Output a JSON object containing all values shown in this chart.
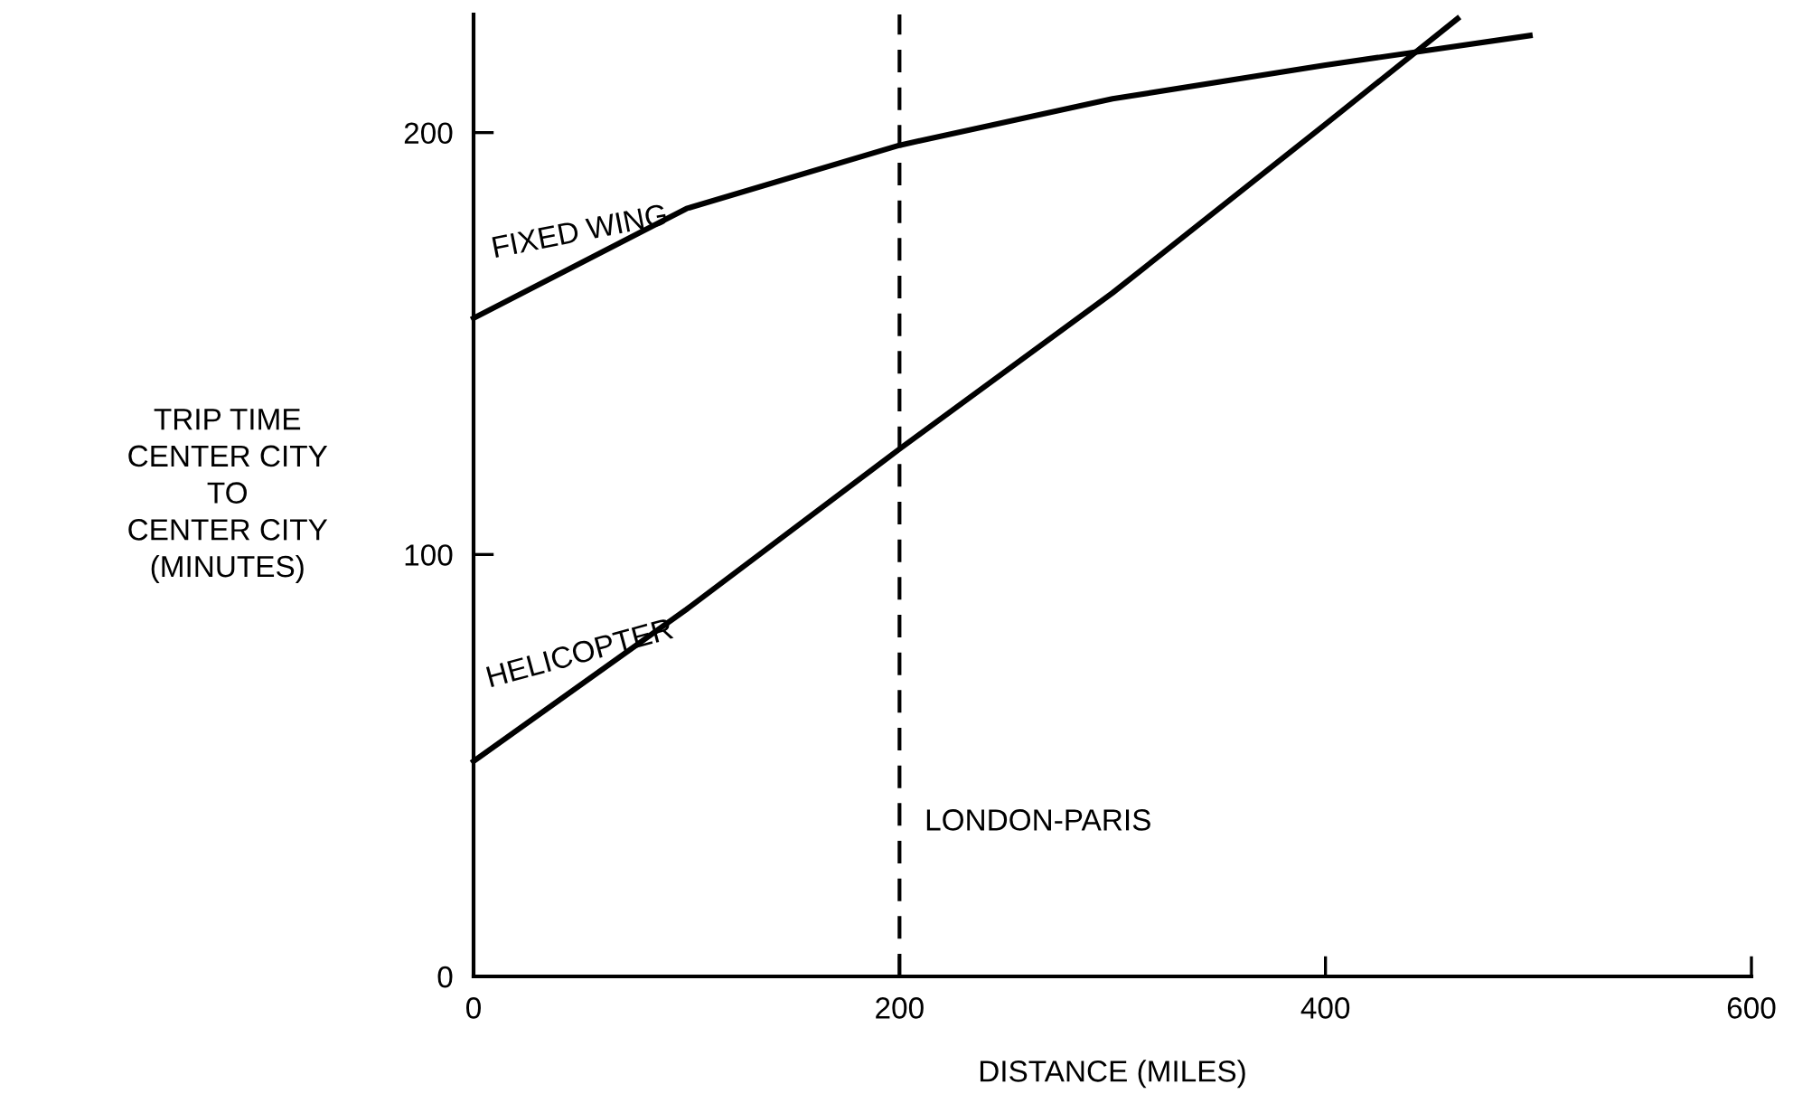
{
  "chart_data": {
    "type": "line",
    "xlabel": "DISTANCE (MILES)",
    "ylabel": "TRIP TIME\nCENTER CITY\nTO\nCENTER CITY\n(MINUTES)",
    "series": [
      {
        "name": "FIXED WING",
        "color": "#000000",
        "x": [
          0,
          100,
          200,
          300,
          400,
          496
        ],
        "values": [
          156,
          182,
          197,
          208,
          216,
          223
        ]
      },
      {
        "name": "HELICOPTER",
        "color": "#000000",
        "x": [
          0,
          100,
          200,
          300,
          400,
          462
        ],
        "values": [
          51,
          87,
          125,
          162,
          202,
          227
        ]
      }
    ],
    "xlim": [
      0,
      600
    ],
    "xticks": [
      0,
      200,
      400,
      600
    ],
    "ylim": [
      0,
      228
    ],
    "yticks": [
      0,
      100,
      200
    ],
    "ref_lines": [
      {
        "axis": "x",
        "value": 200,
        "label": "LONDON-PARIS",
        "color": "#000000",
        "line_style": "dashed"
      }
    ],
    "grid": false,
    "legend": false,
    "marker": "none",
    "line_style": "solid"
  }
}
